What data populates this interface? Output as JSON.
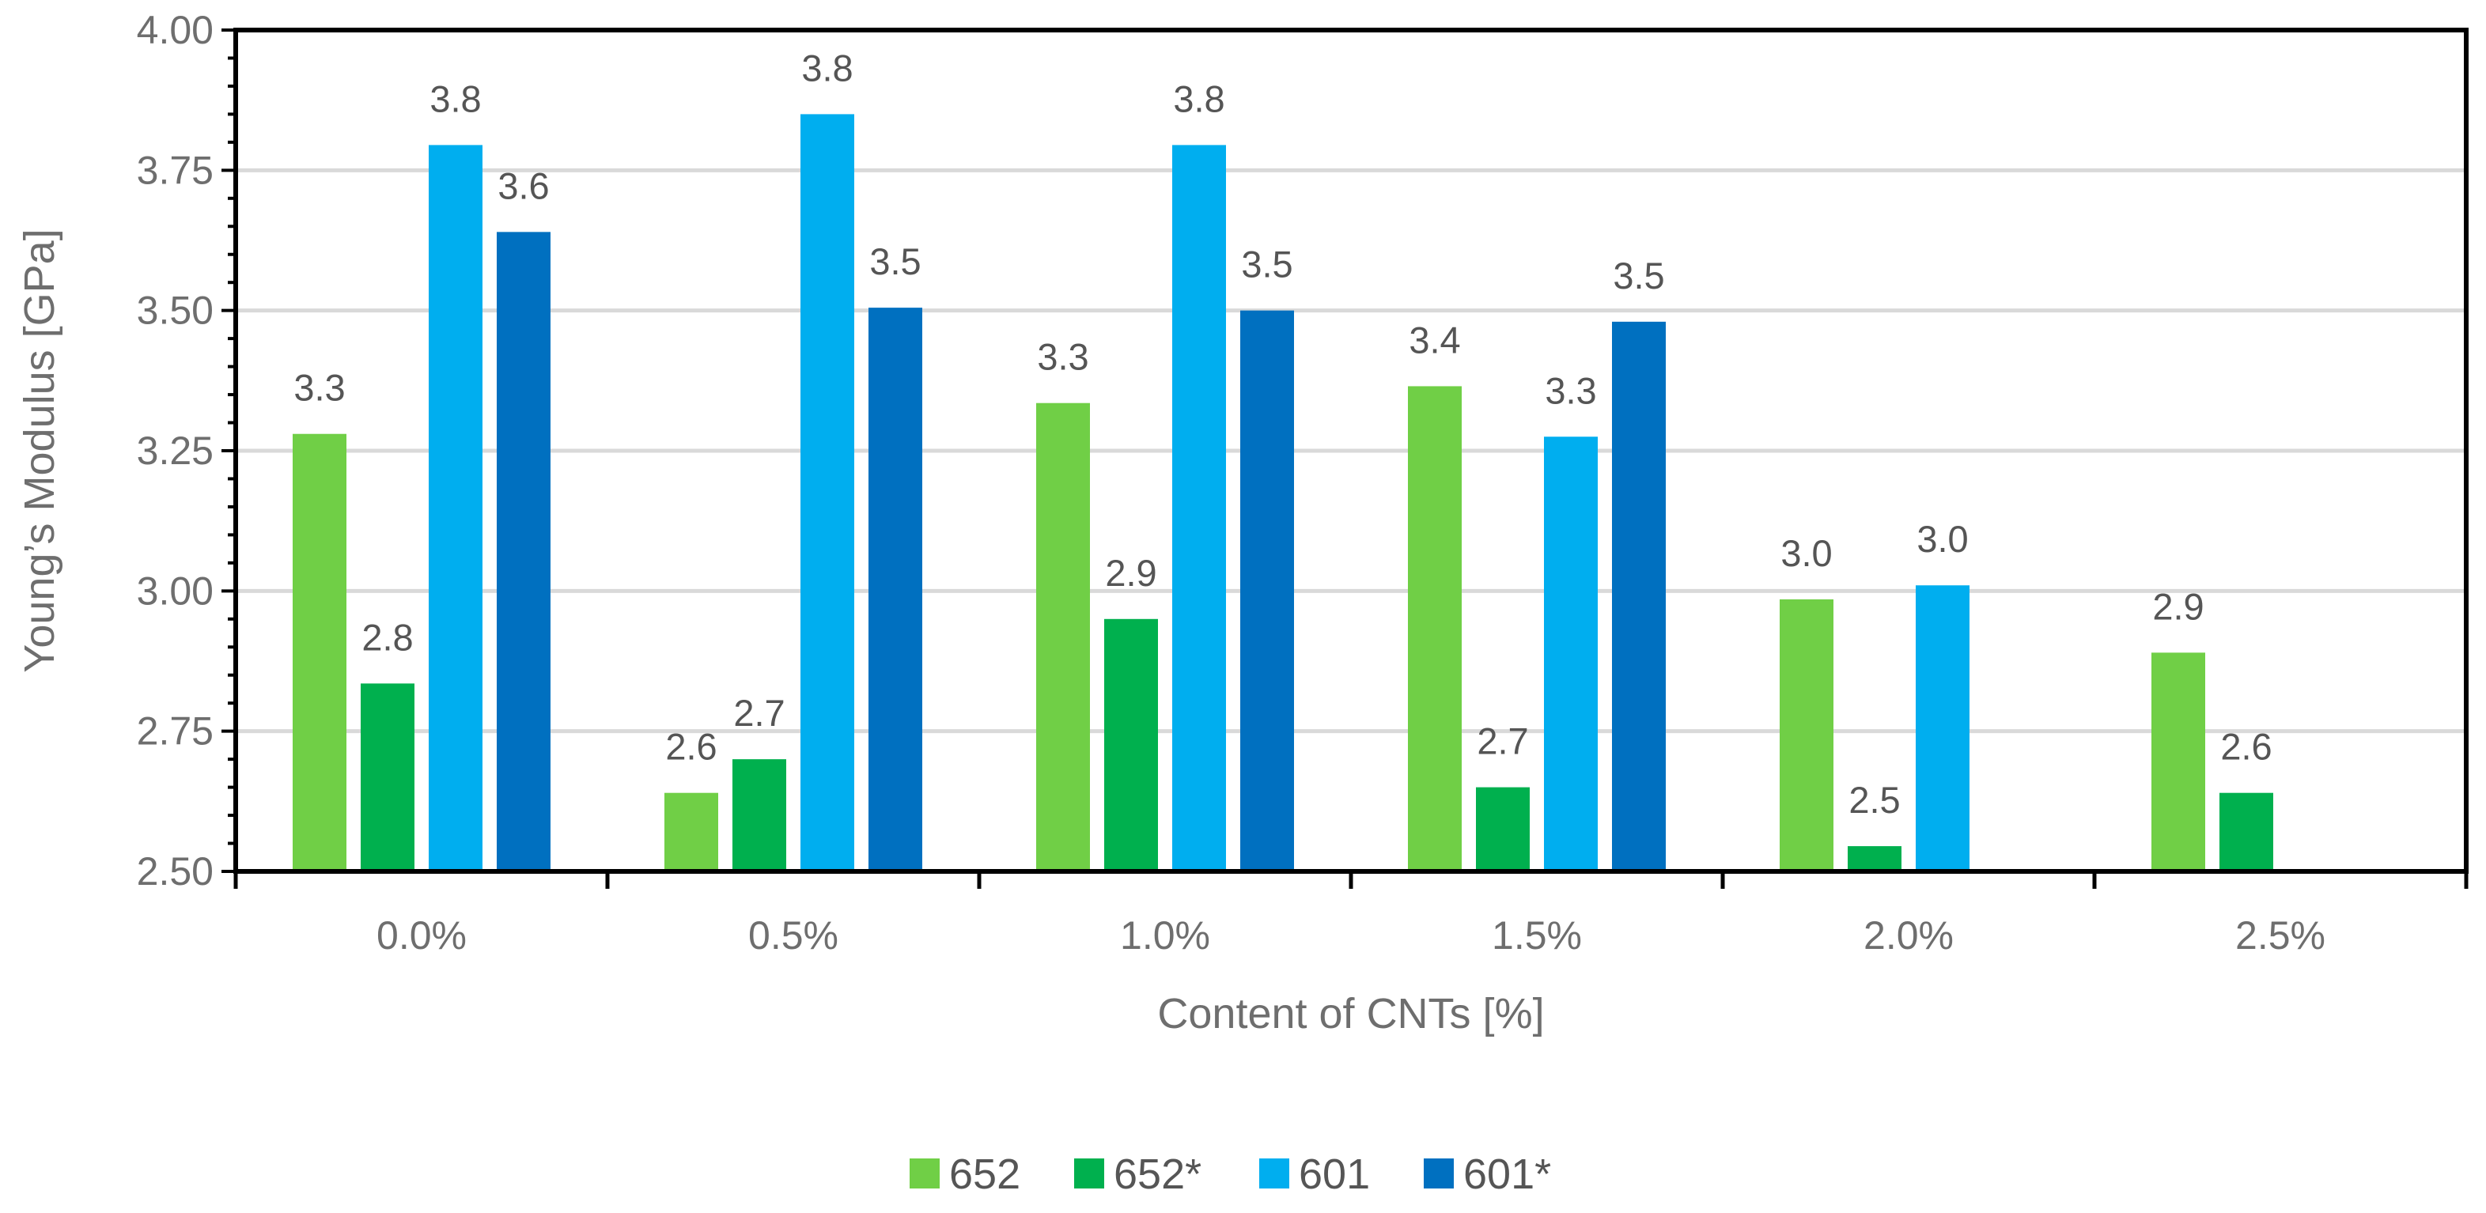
{
  "chart_data": {
    "type": "bar",
    "title": "",
    "xlabel": "Content of CNTs [%]",
    "ylabel": "Young’s Modulus [GPa]",
    "ylim": [
      2.5,
      4.0
    ],
    "y_ticks": [
      "2.50",
      "2.75",
      "3.00",
      "3.25",
      "3.50",
      "3.75",
      "4.00"
    ],
    "grid": true,
    "legend_position": "bottom",
    "categories": [
      "0.0%",
      "0.5%",
      "1.0%",
      "1.5%",
      "2.0%",
      "2.5%"
    ],
    "series": [
      {
        "name": "652",
        "color": "#70cf46",
        "values": [
          3.28,
          2.64,
          3.335,
          3.365,
          2.985,
          2.89
        ],
        "labels": [
          "3.3",
          "2.6",
          "3.3",
          "3.4",
          "3.0",
          "2.9"
        ]
      },
      {
        "name": "652*",
        "color": "#00b04e",
        "values": [
          2.835,
          2.7,
          2.95,
          2.65,
          2.545,
          2.64
        ],
        "labels": [
          "2.8",
          "2.7",
          "2.9",
          "2.7",
          "2.5",
          "2.6"
        ]
      },
      {
        "name": "601",
        "color": "#00aeef",
        "values": [
          3.795,
          3.85,
          3.795,
          3.275,
          3.01,
          null
        ],
        "labels": [
          "3.8",
          "3.8",
          "3.8",
          "3.3",
          "3.0",
          ""
        ]
      },
      {
        "name": "601*",
        "color": "#0070c0",
        "values": [
          3.64,
          3.505,
          3.5,
          3.48,
          null,
          null
        ],
        "labels": [
          "3.6",
          "3.5",
          "3.5",
          "3.5",
          "",
          ""
        ]
      }
    ]
  }
}
